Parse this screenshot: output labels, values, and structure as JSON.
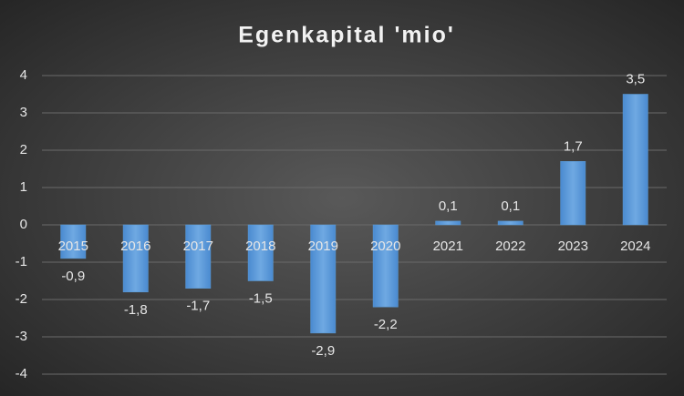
{
  "chart_data": {
    "type": "bar",
    "title": "Egenkapital 'mio'",
    "categories": [
      "2015",
      "2016",
      "2017",
      "2018",
      "2019",
      "2020",
      "2021",
      "2022",
      "2023",
      "2024"
    ],
    "values": [
      -0.9,
      -1.8,
      -1.7,
      -1.5,
      -2.9,
      -2.2,
      0.1,
      0.1,
      1.7,
      3.5
    ],
    "value_labels": [
      "-0,9",
      "-1,8",
      "-1,7",
      "-1,5",
      "-2,9",
      "-2,2",
      "0,1",
      "0,1",
      "1,7",
      "3,5"
    ],
    "color": "#5b9bd5",
    "ylim": [
      -4,
      4
    ],
    "yticks": [
      -4,
      -3,
      -2,
      -1,
      0,
      1,
      2,
      3,
      4
    ],
    "grid": true
  }
}
